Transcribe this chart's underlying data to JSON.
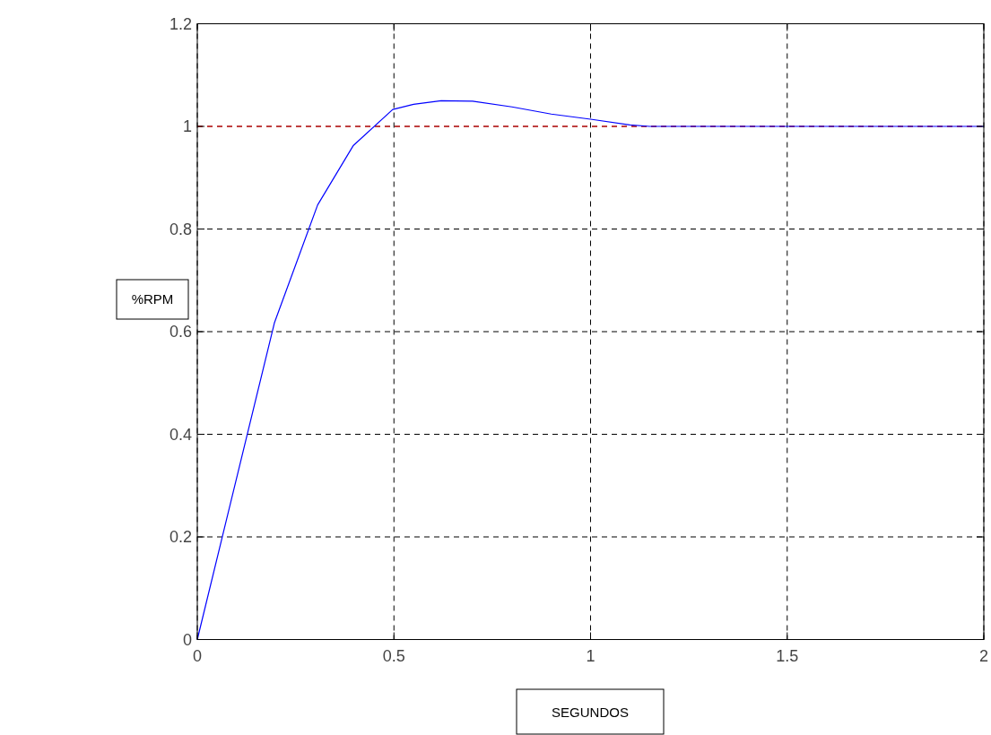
{
  "chart_data": {
    "type": "line",
    "xlabel": "SEGUNDOS",
    "ylabel": "%RPM",
    "x": [
      0,
      0.196,
      0.306,
      0.397,
      0.497,
      0.55,
      0.62,
      0.7,
      0.8,
      0.9,
      1.0,
      1.1,
      1.15,
      2
    ],
    "series": [
      {
        "color": "#0000ff",
        "values": [
          0,
          0.617,
          0.847,
          0.963,
          1.033,
          1.043,
          1.05,
          1.049,
          1.038,
          1.024,
          1.014,
          1.003,
          1.0,
          1.0
        ]
      }
    ],
    "xlim": [
      0,
      2
    ],
    "xticks": [
      0,
      0.5,
      1,
      1.5,
      2
    ],
    "ylim": [
      0,
      1.2
    ],
    "yticks": [
      0,
      0.2,
      0.4,
      0.6,
      0.8,
      1,
      1.2
    ],
    "grid": true,
    "line_style": "solid",
    "ref_lines": [
      {
        "axis": "y",
        "value": 1,
        "color": "#ff0000",
        "line_style": "dashed"
      }
    ]
  }
}
